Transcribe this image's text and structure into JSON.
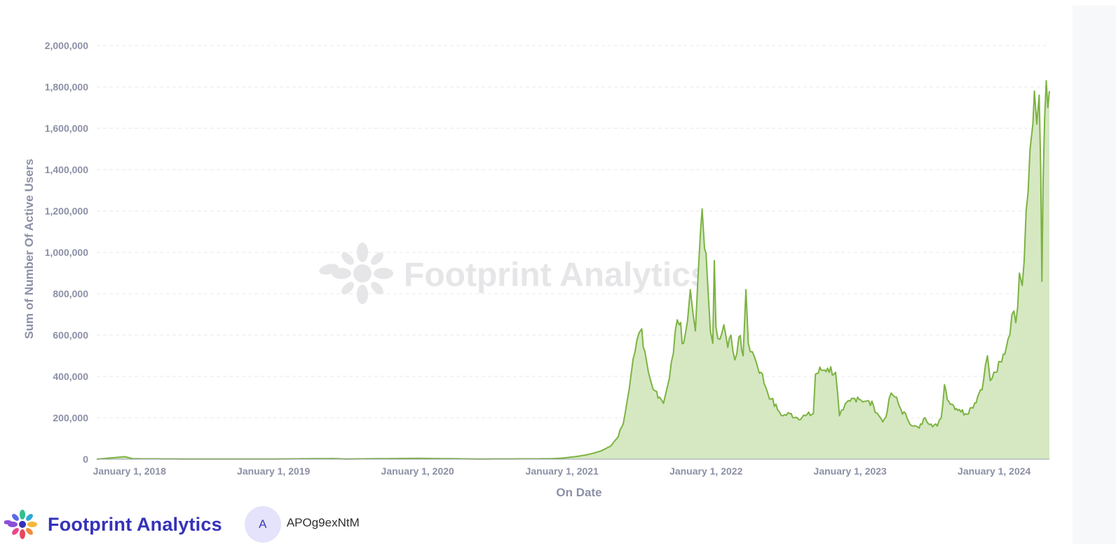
{
  "chart_data": {
    "type": "area",
    "title": "",
    "xlabel": "On Date",
    "ylabel": "Sum of Number Of Active Users",
    "ylim": [
      0,
      2000000
    ],
    "xlim": [
      "2017-10-10",
      "2024-05-20"
    ],
    "y_ticks": [
      "0",
      "200,000",
      "400,000",
      "600,000",
      "800,000",
      "1,000,000",
      "1,200,000",
      "1,400,000",
      "1,600,000",
      "1,800,000",
      "2,000,000"
    ],
    "y_tick_values": [
      0,
      200000,
      400000,
      600000,
      800000,
      1000000,
      1200000,
      1400000,
      1600000,
      1800000,
      2000000
    ],
    "x_ticks": [
      "January 1, 2018",
      "January 1, 2019",
      "January 1, 2020",
      "January 1, 2021",
      "January 1, 2022",
      "January 1, 2023",
      "January 1, 2024"
    ],
    "x_tick_dates": [
      "2018-01-01",
      "2019-01-01",
      "2020-01-01",
      "2021-01-01",
      "2022-01-01",
      "2023-01-01",
      "2024-01-01"
    ],
    "grid": true,
    "colors": {
      "line": "#7cb342",
      "fill": "#d5e8c2",
      "grid": "#e8e8ec",
      "axis_text": "#8c90a6"
    },
    "series": [
      {
        "points": [
          [
            "2017-10-10",
            0
          ],
          [
            "2017-12-20",
            12000
          ],
          [
            "2018-01-10",
            2000
          ],
          [
            "2018-06-01",
            1000
          ],
          [
            "2019-01-01",
            1000
          ],
          [
            "2019-06-01",
            3000
          ],
          [
            "2019-07-01",
            1000
          ],
          [
            "2020-01-01",
            4000
          ],
          [
            "2020-06-01",
            1000
          ],
          [
            "2020-12-01",
            2000
          ],
          [
            "2021-01-01",
            5000
          ],
          [
            "2021-01-20",
            9000
          ],
          [
            "2021-02-10",
            14000
          ],
          [
            "2021-03-01",
            20000
          ],
          [
            "2021-03-20",
            28000
          ],
          [
            "2021-04-10",
            40000
          ],
          [
            "2021-05-01",
            60000
          ],
          [
            "2021-05-20",
            100000
          ],
          [
            "2021-06-05",
            170000
          ],
          [
            "2021-06-15",
            280000
          ],
          [
            "2021-06-25",
            410000
          ],
          [
            "2021-07-05",
            520000
          ],
          [
            "2021-07-15",
            610000
          ],
          [
            "2021-07-22",
            630000
          ],
          [
            "2021-07-30",
            520000
          ],
          [
            "2021-08-08",
            420000
          ],
          [
            "2021-08-15",
            370000
          ],
          [
            "2021-08-25",
            330000
          ],
          [
            "2021-09-05",
            300000
          ],
          [
            "2021-09-15",
            270000
          ],
          [
            "2021-09-25",
            350000
          ],
          [
            "2021-10-05",
            470000
          ],
          [
            "2021-10-15",
            620000
          ],
          [
            "2021-10-25",
            650000
          ],
          [
            "2021-11-05",
            560000
          ],
          [
            "2021-11-15",
            670000
          ],
          [
            "2021-11-22",
            820000
          ],
          [
            "2021-11-28",
            720000
          ],
          [
            "2021-12-05",
            620000
          ],
          [
            "2021-12-12",
            900000
          ],
          [
            "2021-12-18",
            1100000
          ],
          [
            "2021-12-22",
            1210000
          ],
          [
            "2021-12-28",
            1020000
          ],
          [
            "2022-01-05",
            850000
          ],
          [
            "2022-01-12",
            620000
          ],
          [
            "2022-01-18",
            560000
          ],
          [
            "2022-01-22",
            960000
          ],
          [
            "2022-01-26",
            640000
          ],
          [
            "2022-02-05",
            580000
          ],
          [
            "2022-02-15",
            650000
          ],
          [
            "2022-02-25",
            540000
          ],
          [
            "2022-03-05",
            600000
          ],
          [
            "2022-03-15",
            480000
          ],
          [
            "2022-03-25",
            590000
          ],
          [
            "2022-04-05",
            500000
          ],
          [
            "2022-04-12",
            820000
          ],
          [
            "2022-04-18",
            560000
          ],
          [
            "2022-04-28",
            520000
          ],
          [
            "2022-05-08",
            470000
          ],
          [
            "2022-05-20",
            420000
          ],
          [
            "2022-06-01",
            350000
          ],
          [
            "2022-06-15",
            290000
          ],
          [
            "2022-07-01",
            240000
          ],
          [
            "2022-07-15",
            210000
          ],
          [
            "2022-08-01",
            220000
          ],
          [
            "2022-08-20",
            200000
          ],
          [
            "2022-09-10",
            210000
          ],
          [
            "2022-09-30",
            220000
          ],
          [
            "2022-10-05",
            410000
          ],
          [
            "2022-10-20",
            430000
          ],
          [
            "2022-11-05",
            440000
          ],
          [
            "2022-11-25",
            420000
          ],
          [
            "2022-12-05",
            210000
          ],
          [
            "2022-12-15",
            240000
          ],
          [
            "2023-01-01",
            280000
          ],
          [
            "2023-01-20",
            300000
          ],
          [
            "2023-02-10",
            280000
          ],
          [
            "2023-03-01",
            260000
          ],
          [
            "2023-03-15",
            210000
          ],
          [
            "2023-03-25",
            180000
          ],
          [
            "2023-04-05",
            230000
          ],
          [
            "2023-04-15",
            320000
          ],
          [
            "2023-04-25",
            300000
          ],
          [
            "2023-05-10",
            240000
          ],
          [
            "2023-05-25",
            200000
          ],
          [
            "2023-06-10",
            160000
          ],
          [
            "2023-06-25",
            150000
          ],
          [
            "2023-07-10",
            200000
          ],
          [
            "2023-07-25",
            170000
          ],
          [
            "2023-08-10",
            160000
          ],
          [
            "2023-08-20",
            200000
          ],
          [
            "2023-08-28",
            360000
          ],
          [
            "2023-09-08",
            280000
          ],
          [
            "2023-09-20",
            260000
          ],
          [
            "2023-10-05",
            240000
          ],
          [
            "2023-10-20",
            220000
          ],
          [
            "2023-11-05",
            250000
          ],
          [
            "2023-11-20",
            300000
          ],
          [
            "2023-12-05",
            380000
          ],
          [
            "2023-12-15",
            500000
          ],
          [
            "2023-12-22",
            380000
          ],
          [
            "2024-01-05",
            420000
          ],
          [
            "2024-01-20",
            470000
          ],
          [
            "2024-02-05",
            580000
          ],
          [
            "2024-02-15",
            700000
          ],
          [
            "2024-02-25",
            660000
          ],
          [
            "2024-03-05",
            900000
          ],
          [
            "2024-03-12",
            840000
          ],
          [
            "2024-03-22",
            1200000
          ],
          [
            "2024-04-01",
            1500000
          ],
          [
            "2024-04-08",
            1620000
          ],
          [
            "2024-04-12",
            1780000
          ],
          [
            "2024-04-18",
            1620000
          ],
          [
            "2024-04-24",
            1760000
          ],
          [
            "2024-04-28",
            1400000
          ],
          [
            "2024-05-01",
            860000
          ],
          [
            "2024-05-04",
            1340000
          ],
          [
            "2024-05-08",
            1650000
          ],
          [
            "2024-05-12",
            1830000
          ],
          [
            "2024-05-16",
            1700000
          ],
          [
            "2024-05-20",
            1780000
          ]
        ]
      }
    ]
  },
  "watermark": {
    "text": "Footprint Analytics"
  },
  "footer": {
    "brand_name": "Footprint Analytics",
    "avatar_initial": "A",
    "username": "APOg9exNtM"
  }
}
